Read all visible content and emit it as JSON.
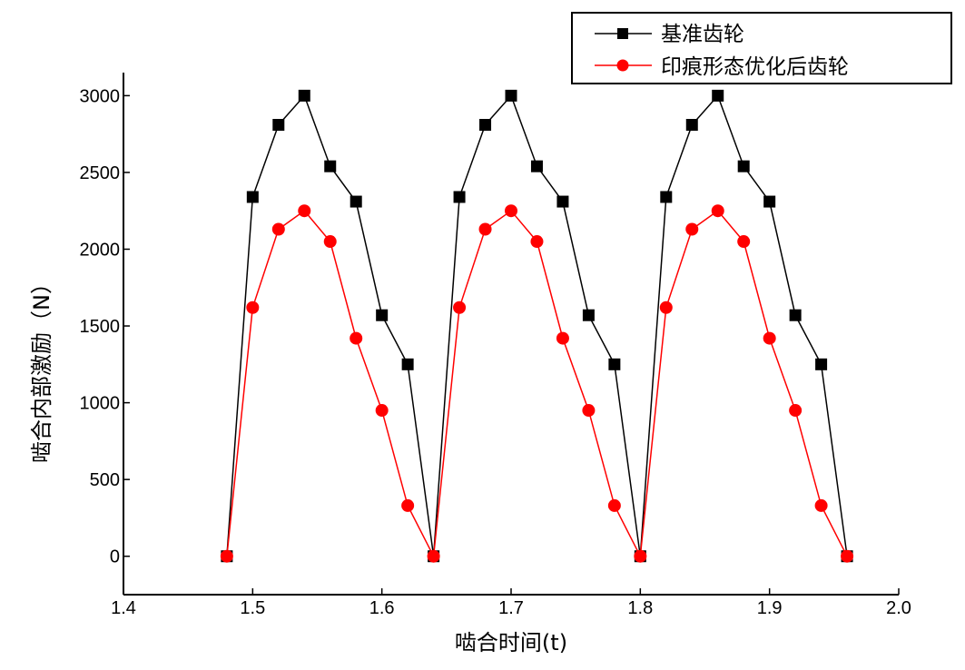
{
  "chart_data": {
    "type": "line",
    "title": "",
    "xlabel": "啮合时间(t)",
    "ylabel": "啮合内部激励（N）",
    "xlim": [
      1.4,
      2.0
    ],
    "ylim": [
      -250,
      3150
    ],
    "xticks": [
      1.4,
      1.5,
      1.6,
      1.7,
      1.8,
      1.9,
      2.0
    ],
    "xtick_labels": [
      "1.4",
      "1.5",
      "1.6",
      "1.7",
      "1.8",
      "1.9",
      "2.0"
    ],
    "yticks": [
      0,
      500,
      1000,
      1500,
      2000,
      2500,
      3000
    ],
    "ytick_labels": [
      "0",
      "500",
      "1000",
      "1500",
      "2000",
      "2500",
      "3000"
    ],
    "grid": false,
    "legend_position": "top-right",
    "x": [
      1.48,
      1.5,
      1.52,
      1.54,
      1.56,
      1.58,
      1.6,
      1.62,
      1.64,
      1.66,
      1.68,
      1.7,
      1.72,
      1.74,
      1.76,
      1.78,
      1.8,
      1.82,
      1.84,
      1.86,
      1.88,
      1.9,
      1.92,
      1.94,
      1.96
    ],
    "series": [
      {
        "name": "基准齿轮",
        "color": "#000000",
        "marker": "square",
        "values": [
          0,
          2340,
          2810,
          3000,
          2540,
          2310,
          1570,
          1250,
          0,
          2340,
          2810,
          3000,
          2540,
          2310,
          1570,
          1250,
          0,
          2340,
          2810,
          3000,
          2540,
          2310,
          1570,
          1250,
          0
        ]
      },
      {
        "name": "印痕形态优化后齿轮",
        "color": "#ff0000",
        "marker": "circle",
        "values": [
          0,
          1620,
          2130,
          2250,
          2050,
          1420,
          950,
          330,
          0,
          1620,
          2130,
          2250,
          2050,
          1420,
          950,
          330,
          0,
          1620,
          2130,
          2250,
          2050,
          1420,
          950,
          330,
          0
        ]
      }
    ]
  }
}
